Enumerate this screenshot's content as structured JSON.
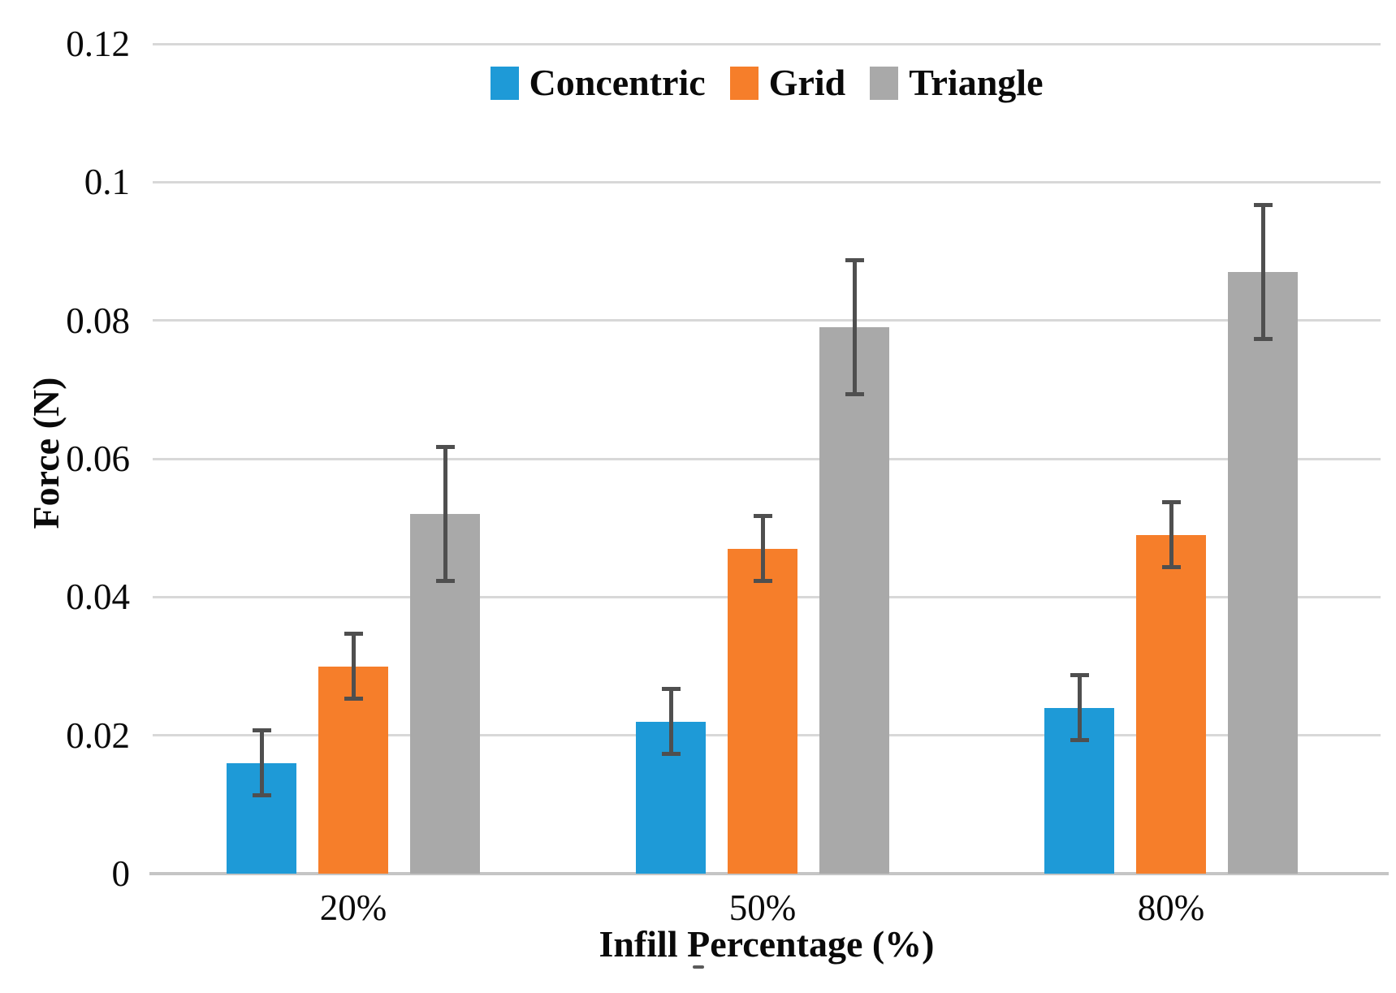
{
  "chart_data": {
    "type": "bar",
    "title": "",
    "categories": [
      "20%",
      "50%",
      "80%"
    ],
    "series": [
      {
        "name": "Concentric",
        "color": "#1E9AD7",
        "values": [
          0.016,
          0.022,
          0.024
        ],
        "errors": [
          0.005,
          0.005,
          0.005
        ]
      },
      {
        "name": "Grid",
        "color": "#F67E2A",
        "values": [
          0.03,
          0.047,
          0.049
        ],
        "errors": [
          0.005,
          0.005,
          0.005
        ]
      },
      {
        "name": "Triangle",
        "color": "#A9A9A9",
        "values": [
          0.052,
          0.079,
          0.087
        ],
        "errors": [
          0.01,
          0.01,
          0.01
        ]
      }
    ],
    "xlabel": "Infill Percentage (%)",
    "ylabel": "Force (N)",
    "ylim": [
      0,
      0.12
    ],
    "ytick_step": 0.02,
    "yticks": [
      {
        "label": "0.12",
        "value": 0.12
      },
      {
        "label": "0.1",
        "value": 0.1
      },
      {
        "label": "0.08",
        "value": 0.08
      },
      {
        "label": "0.06",
        "value": 0.06
      },
      {
        "label": "0.04",
        "value": 0.04
      },
      {
        "label": "0.02",
        "value": 0.02
      },
      {
        "label": "0",
        "value": 0
      }
    ],
    "grid": true,
    "legend_position": "top-center",
    "error_bars": true,
    "error_bar_color": "#4F4F4F",
    "gridline_color": "#D8D8D8",
    "axis_line_color": "#C5C5C5",
    "background_color": "#FFFFFF"
  }
}
